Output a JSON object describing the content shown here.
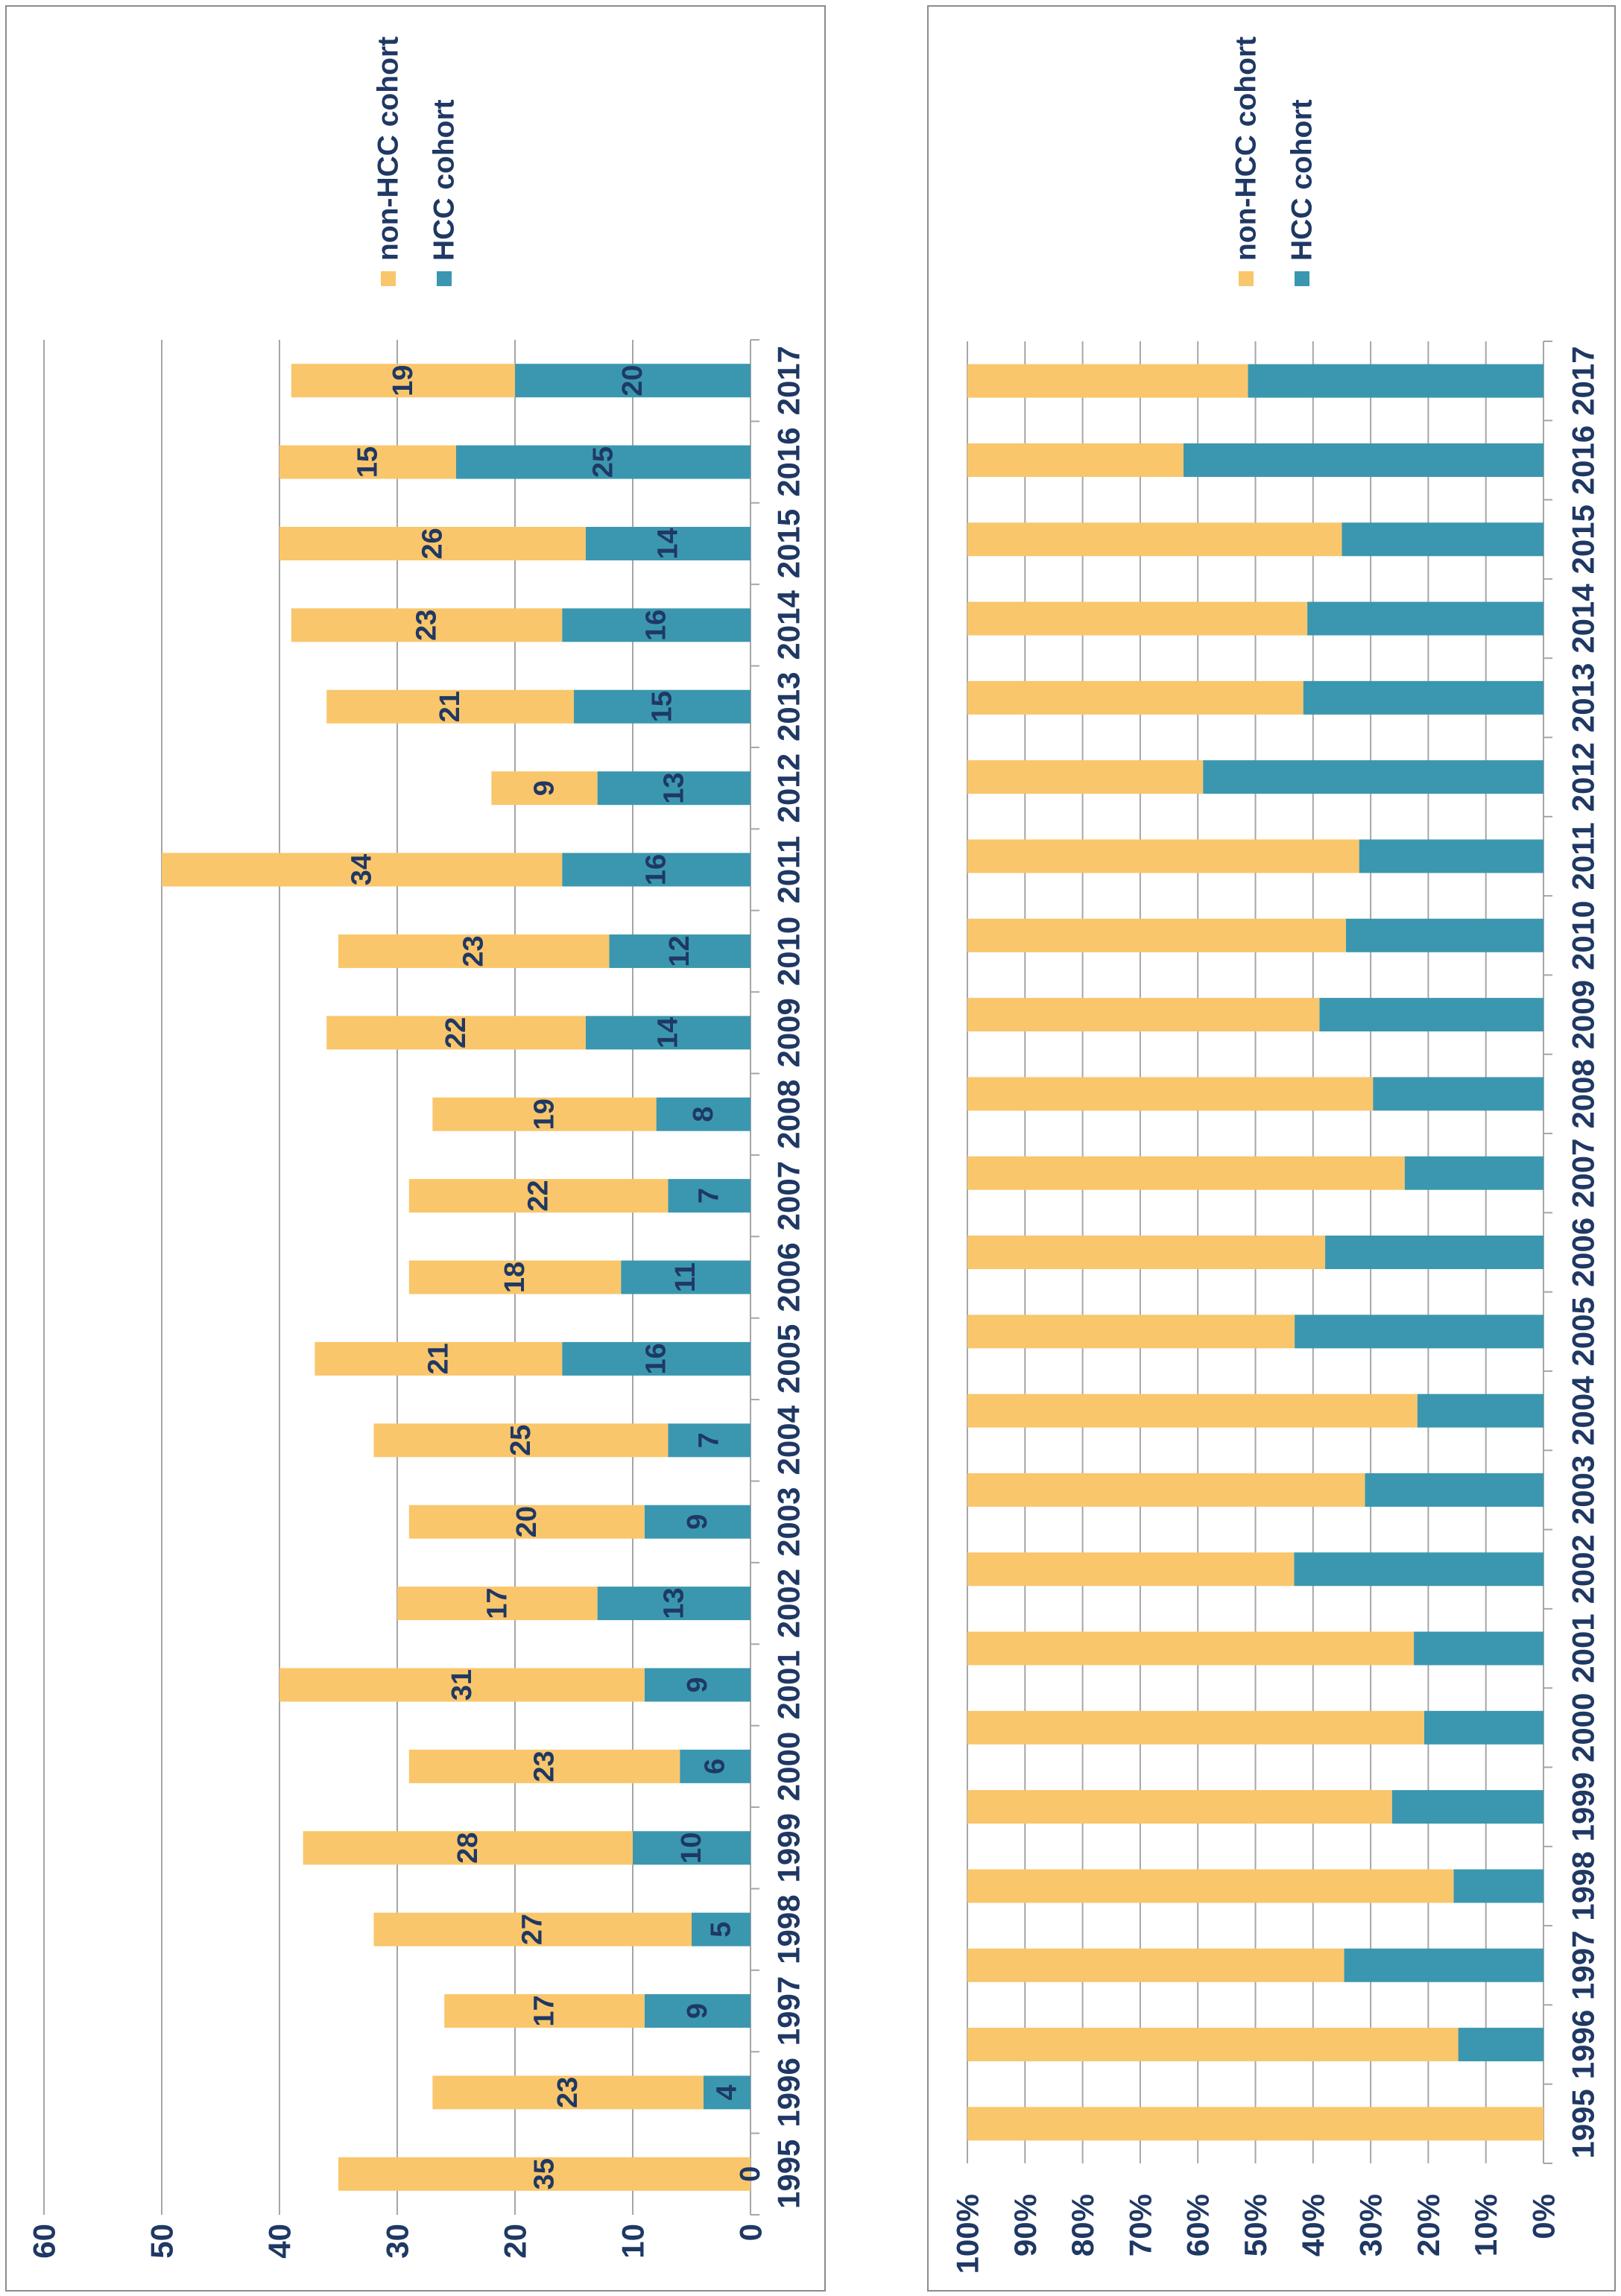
{
  "chart_data": [
    {
      "type": "bar",
      "stacked": true,
      "categories": [
        "1995",
        "1996",
        "1997",
        "1998",
        "1999",
        "2000",
        "2001",
        "2002",
        "2003",
        "2004",
        "2005",
        "2006",
        "2007",
        "2008",
        "2009",
        "2010",
        "2011",
        "2012",
        "2013",
        "2014",
        "2015",
        "2016",
        "2017"
      ],
      "series": [
        {
          "name": "HCC cohort",
          "color": "#3b97af",
          "values": [
            0,
            4,
            9,
            5,
            10,
            6,
            9,
            13,
            9,
            7,
            16,
            11,
            7,
            8,
            14,
            12,
            16,
            13,
            15,
            16,
            14,
            25,
            20
          ]
        },
        {
          "name": "non-HCC cohort",
          "color": "#f9c66b",
          "values": [
            35,
            23,
            17,
            27,
            28,
            23,
            31,
            17,
            20,
            25,
            21,
            18,
            22,
            19,
            22,
            23,
            34,
            9,
            21,
            23,
            26,
            15,
            19
          ]
        }
      ],
      "ylim": [
        0,
        60
      ],
      "yticks": [
        0,
        10,
        20,
        30,
        40,
        50,
        60
      ],
      "data_labels": true,
      "grid": true,
      "legend": {
        "position": "right"
      }
    },
    {
      "type": "bar",
      "stacked": true,
      "normalized": true,
      "categories": [
        "1995",
        "1996",
        "1997",
        "1998",
        "1999",
        "2000",
        "2001",
        "2002",
        "2003",
        "2004",
        "2005",
        "2006",
        "2007",
        "2008",
        "2009",
        "2010",
        "2011",
        "2012",
        "2013",
        "2014",
        "2015",
        "2016",
        "2017"
      ],
      "series": [
        {
          "name": "HCC cohort",
          "color": "#3b97af",
          "values": [
            0,
            14.8,
            34.6,
            15.6,
            26.3,
            20.7,
            22.5,
            43.3,
            31.0,
            21.9,
            43.2,
            37.9,
            24.1,
            29.6,
            38.9,
            34.3,
            32.0,
            59.1,
            41.7,
            41.0,
            35.0,
            62.5,
            51.3
          ]
        },
        {
          "name": "non-HCC cohort",
          "color": "#f9c66b",
          "values": [
            100,
            85.2,
            65.4,
            84.4,
            73.7,
            79.3,
            77.5,
            56.7,
            69.0,
            78.1,
            56.8,
            62.1,
            75.9,
            70.4,
            61.1,
            65.7,
            68.0,
            40.9,
            58.3,
            59.0,
            65.0,
            37.5,
            48.7
          ]
        }
      ],
      "ylim": [
        0,
        100
      ],
      "yticks": [
        "0%",
        "10%",
        "20%",
        "30%",
        "40%",
        "50%",
        "60%",
        "70%",
        "80%",
        "90%",
        "100%"
      ],
      "data_labels": false,
      "grid": true,
      "legend": {
        "position": "right"
      }
    }
  ]
}
